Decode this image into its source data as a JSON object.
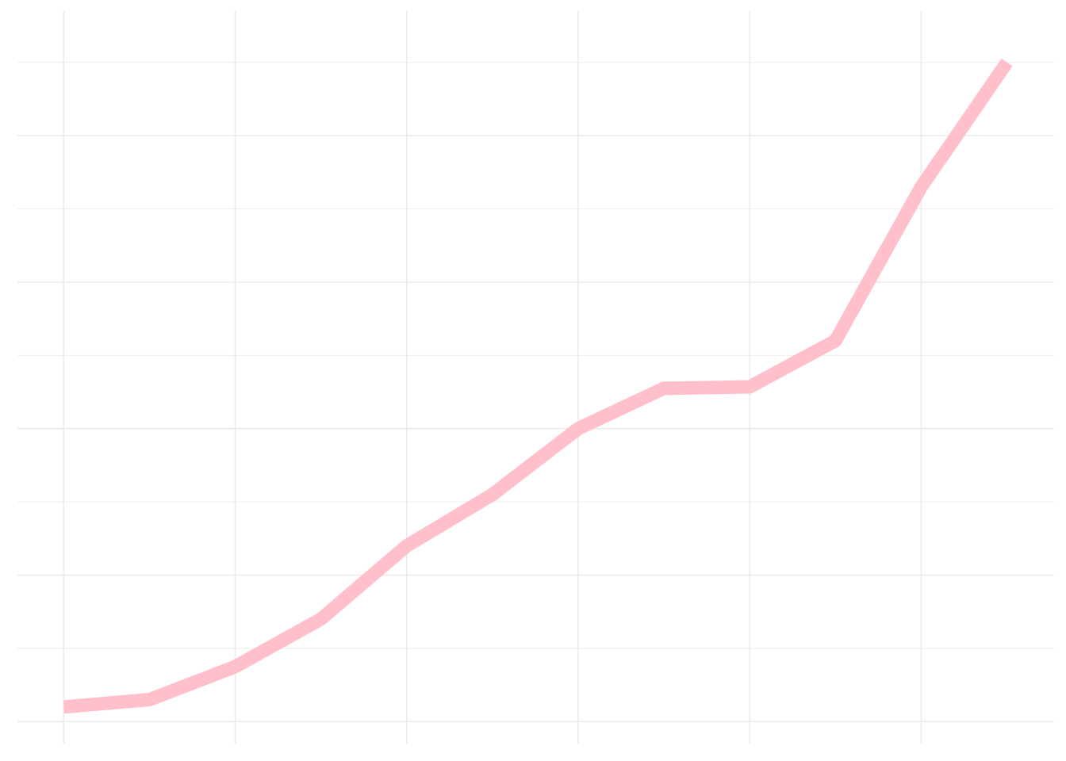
{
  "chart_data": {
    "type": "line",
    "title": "",
    "xlabel": "",
    "ylabel": "",
    "x": [
      0,
      1,
      2,
      3,
      4,
      5,
      6,
      7,
      8,
      9,
      10,
      11
    ],
    "series": [
      {
        "values": [
          0.2,
          0.3,
          0.75,
          1.4,
          2.4,
          3.1,
          4.0,
          4.55,
          4.57,
          5.2,
          7.3,
          9.0
        ]
      }
    ],
    "xlim": [
      -0.54,
      11.55
    ],
    "ylim": [
      -0.3,
      9.7
    ],
    "grid": true,
    "line_color": "#FFC0CB",
    "grid_color": "#EBEBEB",
    "background": "#FFFFFF"
  }
}
